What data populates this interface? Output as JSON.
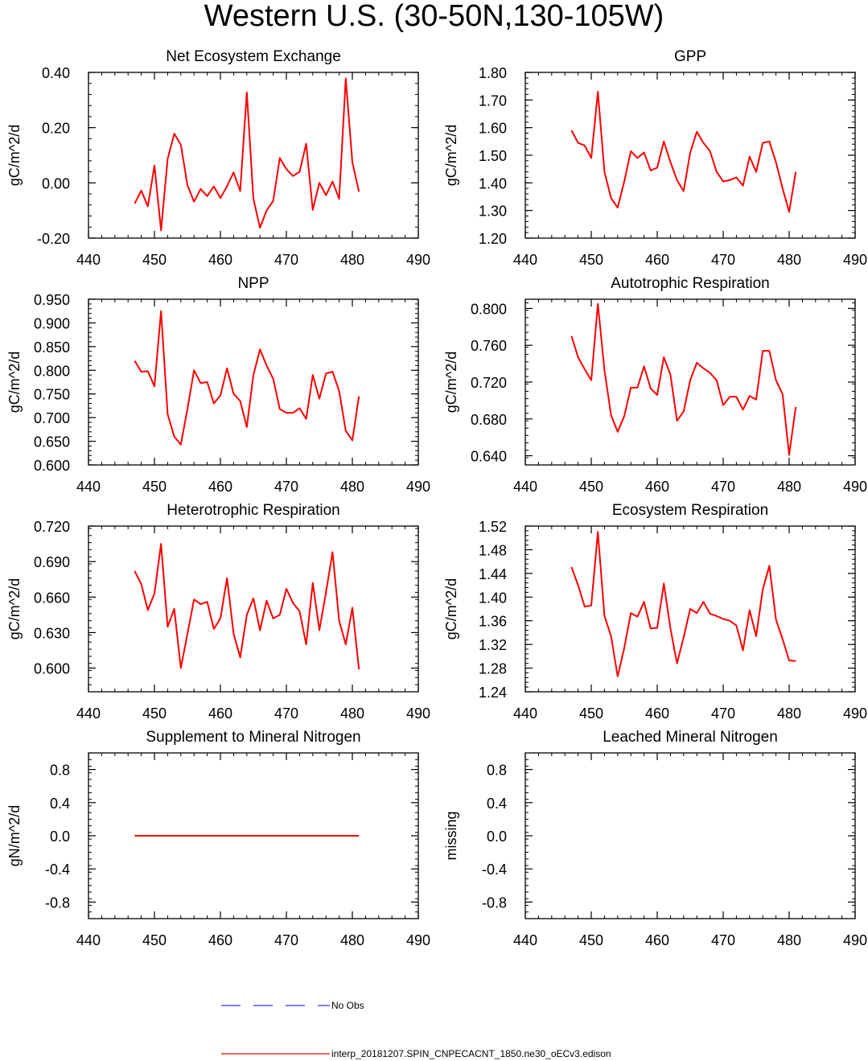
{
  "title": "Western U.S. (30-50N,130-105W)",
  "legend": {
    "obs_label": "No Obs",
    "model_label": "interp_20181207.SPIN_CNPECACNT_1850.ne30_oECv3.edison",
    "obs_color": "#3333ff",
    "model_color": "#ff0000"
  },
  "chart_data": [
    {
      "type": "line",
      "title": "Net Ecosystem Exchange",
      "ylabel": "gC/m^2/d",
      "xlim": [
        440,
        490
      ],
      "ylim": [
        -0.2,
        0.4
      ],
      "xticks": [
        "440",
        "450",
        "460",
        "470",
        "480",
        "490"
      ],
      "yticks": [
        -0.2,
        0.0,
        0.2,
        0.4
      ],
      "ytick_labels": [
        "-0.20",
        "0.00",
        "0.20",
        "0.40"
      ],
      "yminor_step": 0.04,
      "series": [
        {
          "name": "interp_20181207.SPIN_CNPECACNT_1850.ne30_oECv3.edison",
          "x": [
            447,
            448,
            449,
            450,
            451,
            452,
            453,
            454,
            455,
            456,
            457,
            458,
            459,
            460,
            461,
            462,
            463,
            464,
            465,
            466,
            467,
            468,
            469,
            470,
            471,
            472,
            473,
            474,
            475,
            476,
            477,
            478,
            479,
            480,
            481
          ],
          "values": [
            -0.075,
            -0.028,
            -0.085,
            0.063,
            -0.172,
            0.087,
            0.178,
            0.138,
            -0.008,
            -0.068,
            -0.022,
            -0.048,
            -0.013,
            -0.055,
            -0.012,
            0.038,
            -0.03,
            0.328,
            -0.058,
            -0.162,
            -0.1,
            -0.065,
            0.09,
            0.05,
            0.025,
            0.04,
            0.142,
            -0.098,
            0.0,
            -0.045,
            0.005,
            -0.058,
            0.378,
            0.075,
            -0.032
          ]
        }
      ]
    },
    {
      "type": "line",
      "title": "GPP",
      "ylabel": "gC/m^2/d",
      "xlim": [
        440,
        490
      ],
      "ylim": [
        1.2,
        1.8
      ],
      "xticks": [
        "440",
        "450",
        "460",
        "470",
        "480",
        "490"
      ],
      "yticks": [
        1.2,
        1.3,
        1.4,
        1.5,
        1.6,
        1.7,
        1.8
      ],
      "ytick_labels": [
        "1.20",
        "1.30",
        "1.40",
        "1.50",
        "1.60",
        "1.70",
        "1.80"
      ],
      "yminor_step": 0.02,
      "series": [
        {
          "name": "interp_20181207.SPIN_CNPECACNT_1850.ne30_oECv3.edison",
          "x": [
            447,
            448,
            449,
            450,
            451,
            452,
            453,
            454,
            455,
            456,
            457,
            458,
            459,
            460,
            461,
            462,
            463,
            464,
            465,
            466,
            467,
            468,
            469,
            470,
            471,
            472,
            473,
            474,
            475,
            476,
            477,
            478,
            479,
            480,
            481
          ],
          "values": [
            1.59,
            1.545,
            1.535,
            1.49,
            1.73,
            1.44,
            1.345,
            1.31,
            1.405,
            1.515,
            1.49,
            1.51,
            1.445,
            1.455,
            1.55,
            1.475,
            1.41,
            1.37,
            1.51,
            1.585,
            1.545,
            1.515,
            1.44,
            1.405,
            1.41,
            1.42,
            1.39,
            1.495,
            1.44,
            1.545,
            1.55,
            1.475,
            1.38,
            1.295,
            1.44
          ]
        }
      ]
    },
    {
      "type": "line",
      "title": "NPP",
      "ylabel": "gC/m^2/d",
      "xlim": [
        440,
        490
      ],
      "ylim": [
        0.6,
        0.95
      ],
      "xticks": [
        "440",
        "450",
        "460",
        "470",
        "480",
        "490"
      ],
      "yticks": [
        0.6,
        0.65,
        0.7,
        0.75,
        0.8,
        0.85,
        0.9,
        0.95
      ],
      "ytick_labels": [
        "0.600",
        "0.650",
        "0.700",
        "0.750",
        "0.800",
        "0.850",
        "0.900",
        "0.950"
      ],
      "yminor_step": 0.01,
      "series": [
        {
          "name": "interp_20181207.SPIN_CNPECACNT_1850.ne30_oECv3.edison",
          "x": [
            447,
            448,
            449,
            450,
            451,
            452,
            453,
            454,
            455,
            456,
            457,
            458,
            459,
            460,
            461,
            462,
            463,
            464,
            465,
            466,
            467,
            468,
            469,
            470,
            471,
            472,
            473,
            474,
            475,
            476,
            477,
            478,
            479,
            480,
            481
          ],
          "values": [
            0.82,
            0.797,
            0.798,
            0.766,
            0.925,
            0.707,
            0.66,
            0.643,
            0.718,
            0.8,
            0.773,
            0.775,
            0.73,
            0.747,
            0.804,
            0.75,
            0.735,
            0.68,
            0.79,
            0.844,
            0.81,
            0.782,
            0.718,
            0.71,
            0.71,
            0.72,
            0.697,
            0.79,
            0.74,
            0.793,
            0.797,
            0.756,
            0.672,
            0.652,
            0.745
          ]
        }
      ]
    },
    {
      "type": "line",
      "title": "Autotrophic Respiration",
      "ylabel": "gC/m^2/d",
      "xlim": [
        440,
        490
      ],
      "ylim": [
        0.63,
        0.81
      ],
      "xticks": [
        "440",
        "450",
        "460",
        "470",
        "480",
        "490"
      ],
      "yticks": [
        0.64,
        0.68,
        0.72,
        0.76,
        0.8
      ],
      "ytick_labels": [
        "0.640",
        "0.680",
        "0.720",
        "0.760",
        "0.800"
      ],
      "yminor_step": 0.008,
      "series": [
        {
          "name": "interp_20181207.SPIN_CNPECACNT_1850.ne30_oECv3.edison",
          "x": [
            447,
            448,
            449,
            450,
            451,
            452,
            453,
            454,
            455,
            456,
            457,
            458,
            459,
            460,
            461,
            462,
            463,
            464,
            465,
            466,
            467,
            468,
            469,
            470,
            471,
            472,
            473,
            474,
            475,
            476,
            477,
            478,
            479,
            480,
            481
          ],
          "values": [
            0.77,
            0.747,
            0.734,
            0.722,
            0.805,
            0.733,
            0.684,
            0.666,
            0.683,
            0.714,
            0.714,
            0.737,
            0.713,
            0.706,
            0.747,
            0.728,
            0.678,
            0.688,
            0.722,
            0.741,
            0.735,
            0.73,
            0.722,
            0.695,
            0.704,
            0.704,
            0.69,
            0.705,
            0.701,
            0.754,
            0.754,
            0.722,
            0.707,
            0.641,
            0.693
          ]
        }
      ]
    },
    {
      "type": "line",
      "title": "Heterotrophic Respiration",
      "ylabel": "gC/m^2/d",
      "xlim": [
        440,
        490
      ],
      "ylim": [
        0.58,
        0.72
      ],
      "xticks": [
        "440",
        "450",
        "460",
        "470",
        "480",
        "490"
      ],
      "yticks": [
        0.6,
        0.63,
        0.66,
        0.69,
        0.72
      ],
      "ytick_labels": [
        "0.600",
        "0.630",
        "0.660",
        "0.690",
        "0.720"
      ],
      "yminor_step": 0.006,
      "series": [
        {
          "name": "interp_20181207.SPIN_CNPECACNT_1850.ne30_oECv3.edison",
          "x": [
            447,
            448,
            449,
            450,
            451,
            452,
            453,
            454,
            455,
            456,
            457,
            458,
            459,
            460,
            461,
            462,
            463,
            464,
            465,
            466,
            467,
            468,
            469,
            470,
            471,
            472,
            473,
            474,
            475,
            476,
            477,
            478,
            479,
            480,
            481
          ],
          "values": [
            0.682,
            0.671,
            0.649,
            0.663,
            0.705,
            0.635,
            0.65,
            0.6,
            0.629,
            0.658,
            0.654,
            0.656,
            0.633,
            0.642,
            0.676,
            0.629,
            0.609,
            0.645,
            0.659,
            0.632,
            0.657,
            0.642,
            0.645,
            0.667,
            0.655,
            0.648,
            0.62,
            0.672,
            0.632,
            0.664,
            0.698,
            0.64,
            0.62,
            0.651,
            0.599
          ]
        }
      ]
    },
    {
      "type": "line",
      "title": "Ecosystem Respiration",
      "ylabel": "gC/m^2/d",
      "xlim": [
        440,
        490
      ],
      "ylim": [
        1.24,
        1.52
      ],
      "xticks": [
        "440",
        "450",
        "460",
        "470",
        "480",
        "490"
      ],
      "yticks": [
        1.24,
        1.28,
        1.32,
        1.36,
        1.4,
        1.44,
        1.48,
        1.52
      ],
      "ytick_labels": [
        "1.24",
        "1.28",
        "1.32",
        "1.36",
        "1.40",
        "1.44",
        "1.48",
        "1.52"
      ],
      "yminor_step": 0.008,
      "series": [
        {
          "name": "interp_20181207.SPIN_CNPECACNT_1850.ne30_oECv3.edison",
          "x": [
            447,
            448,
            449,
            450,
            451,
            452,
            453,
            454,
            455,
            456,
            457,
            458,
            459,
            460,
            461,
            462,
            463,
            464,
            465,
            466,
            467,
            468,
            469,
            470,
            471,
            472,
            473,
            474,
            475,
            476,
            477,
            478,
            479,
            480,
            481
          ],
          "values": [
            1.451,
            1.42,
            1.384,
            1.386,
            1.51,
            1.368,
            1.334,
            1.266,
            1.314,
            1.373,
            1.367,
            1.392,
            1.347,
            1.348,
            1.423,
            1.347,
            1.288,
            1.332,
            1.38,
            1.373,
            1.392,
            1.372,
            1.368,
            1.363,
            1.36,
            1.352,
            1.31,
            1.378,
            1.334,
            1.413,
            1.453,
            1.362,
            1.329,
            1.293,
            1.292
          ]
        }
      ]
    },
    {
      "type": "line",
      "title": "Supplement to Mineral Nitrogen",
      "ylabel": "gN/m^2/d",
      "xlim": [
        440,
        490
      ],
      "ylim": [
        -1.0,
        1.0
      ],
      "xticks": [
        "440",
        "450",
        "460",
        "470",
        "480",
        "490"
      ],
      "yticks": [
        -0.8,
        -0.4,
        0.0,
        0.4,
        0.8
      ],
      "ytick_labels": [
        "-0.8",
        "-0.4",
        "0.0",
        "0.4",
        "0.8"
      ],
      "yminor_step": 0.08,
      "series": [
        {
          "name": "interp_20181207.SPIN_CNPECACNT_1850.ne30_oECv3.edison",
          "x": [
            447,
            481
          ],
          "values": [
            0.0,
            0.0
          ]
        }
      ]
    },
    {
      "type": "line",
      "title": "Leached Mineral Nitrogen",
      "ylabel": "missing",
      "xlim": [
        440,
        490
      ],
      "ylim": [
        -1.0,
        1.0
      ],
      "xticks": [
        "440",
        "450",
        "460",
        "470",
        "480",
        "490"
      ],
      "yticks": [
        -0.8,
        -0.4,
        0.0,
        0.4,
        0.8
      ],
      "ytick_labels": [
        "-0.8",
        "-0.4",
        "0.0",
        "0.4",
        "0.8"
      ],
      "yminor_step": 0.08,
      "series": []
    }
  ]
}
